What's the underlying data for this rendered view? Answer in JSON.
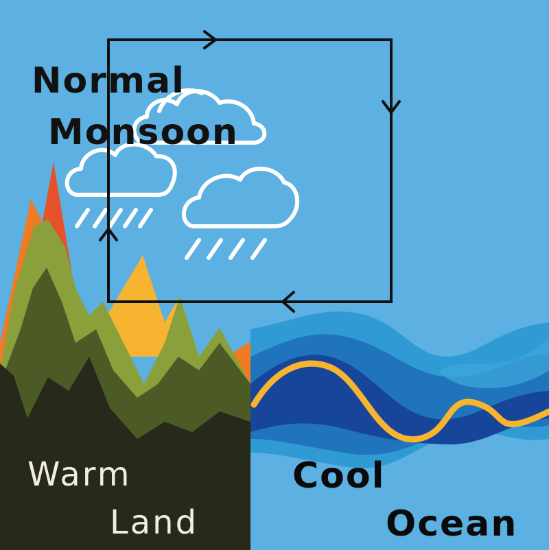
{
  "diagram": {
    "title": {
      "line1": "Normal",
      "line2": "Monsoon"
    },
    "land": {
      "line1": "Warm",
      "line2": "Land"
    },
    "ocean": {
      "line1": "Cool",
      "line2": "Ocean"
    }
  },
  "colors": {
    "sky": "#5cb0e2",
    "cloud_outline": "#ffffff",
    "circulation_arrows": "#111111",
    "land_text": "#f2efe0",
    "ocean_text": "#0a0a0a",
    "mountain_dark": "#272a1a",
    "mountain_mid": "#4c5a25",
    "mountain_light": "#8aa03b",
    "mountain_orange": "#ef7b24",
    "mountain_red": "#e5522a",
    "mountain_yellow": "#f6b431",
    "wave_light": "#2f9ad4",
    "wave_mid": "#1f74bb",
    "wave_dark": "#16459a",
    "wave_accent": "#f6b431"
  },
  "icons": [
    "cloud-with-rain-icon",
    "cloud-icon",
    "cloud-with-rain-icon",
    "arrow-right-icon",
    "arrow-down-icon",
    "arrow-left-icon",
    "arrow-up-icon"
  ]
}
